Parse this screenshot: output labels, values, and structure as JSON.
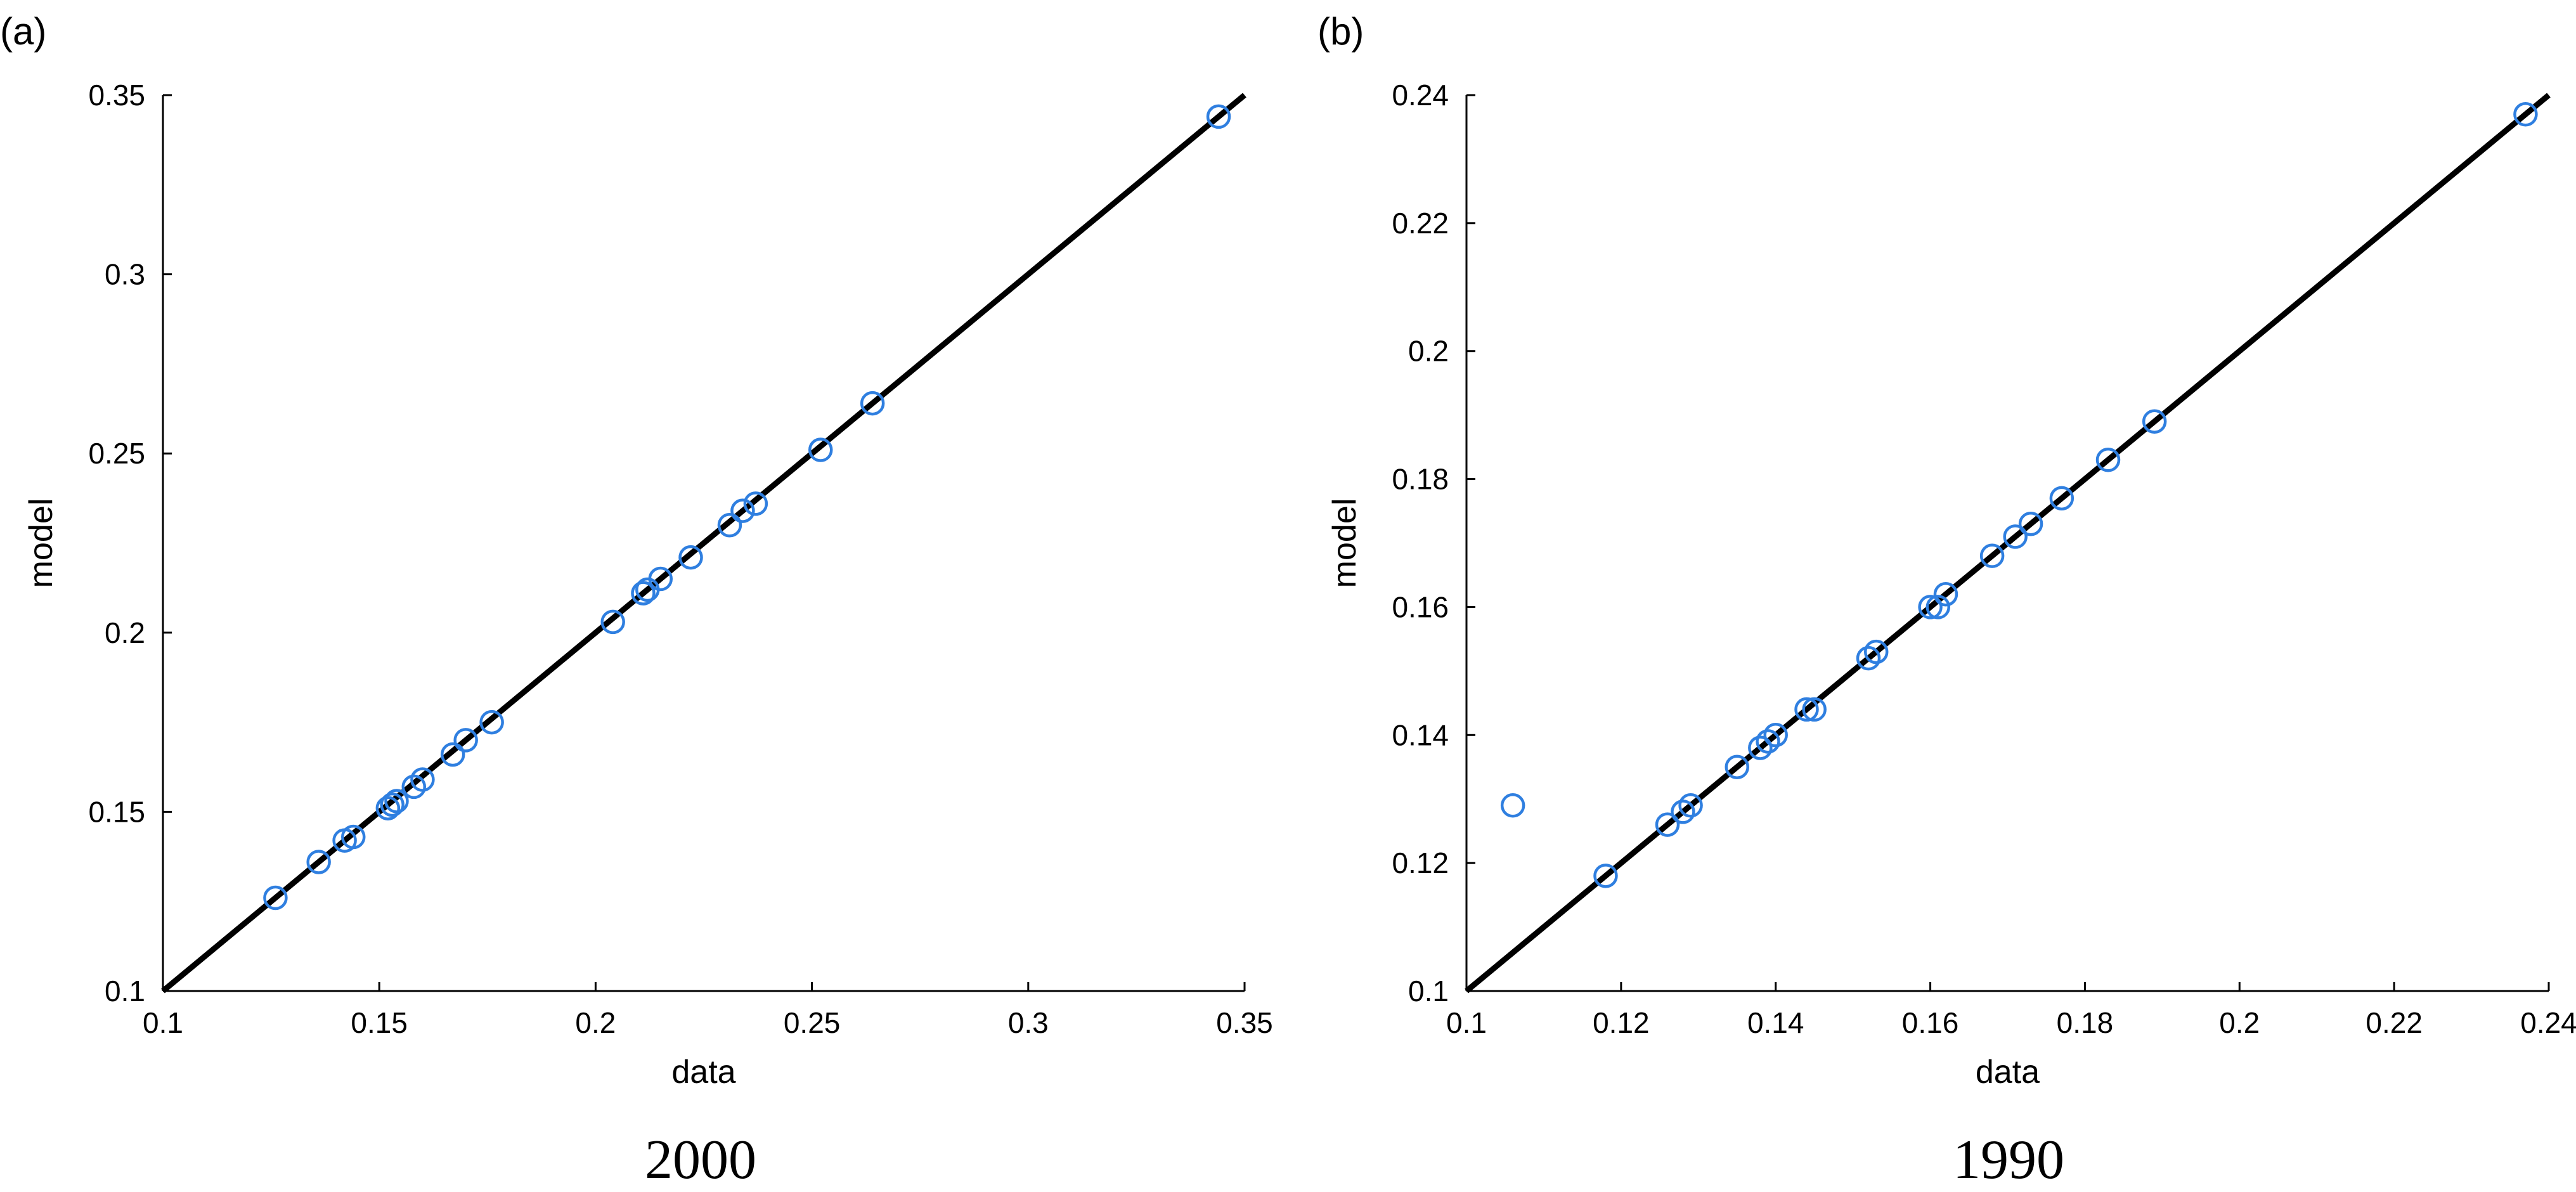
{
  "colors": {
    "marker": "#2f7fe0",
    "line": "#000000",
    "background": "#ffffff"
  },
  "chart_data": [
    {
      "type": "scatter",
      "panel_label": "(a)",
      "year": "2000",
      "title": "",
      "xlabel": "data",
      "ylabel": "model",
      "xlim": [
        0.1,
        0.35
      ],
      "ylim": [
        0.1,
        0.35
      ],
      "xticks": [
        0.1,
        0.15,
        0.2,
        0.25,
        0.3,
        0.35
      ],
      "xtick_labels": [
        "0.1",
        "0.15",
        "0.2",
        "0.25",
        "0.3",
        "0.35"
      ],
      "yticks": [
        0.1,
        0.15,
        0.2,
        0.25,
        0.3,
        0.35
      ],
      "ytick_labels": [
        "0.1",
        "0.15",
        "0.2",
        "0.25",
        "0.3",
        "0.35"
      ],
      "grid": false,
      "reference_line": {
        "x": [
          0.1,
          0.35
        ],
        "y": [
          0.1,
          0.35
        ]
      },
      "points": {
        "x": [
          0.126,
          0.136,
          0.142,
          0.144,
          0.152,
          0.153,
          0.154,
          0.158,
          0.16,
          0.167,
          0.17,
          0.176,
          0.204,
          0.211,
          0.212,
          0.215,
          0.222,
          0.231,
          0.234,
          0.237,
          0.252,
          0.264,
          0.344
        ],
        "y": [
          0.126,
          0.136,
          0.142,
          0.143,
          0.151,
          0.152,
          0.153,
          0.157,
          0.159,
          0.166,
          0.17,
          0.175,
          0.203,
          0.211,
          0.212,
          0.215,
          0.221,
          0.23,
          0.234,
          0.236,
          0.251,
          0.264,
          0.344
        ]
      }
    },
    {
      "type": "scatter",
      "panel_label": "(b)",
      "year": "1990",
      "title": "",
      "xlabel": "data",
      "ylabel": "model",
      "xlim": [
        0.1,
        0.24
      ],
      "ylim": [
        0.1,
        0.24
      ],
      "xticks": [
        0.1,
        0.12,
        0.14,
        0.16,
        0.18,
        0.2,
        0.22,
        0.24
      ],
      "xtick_labels": [
        "0.1",
        "0.12",
        "0.14",
        "0.16",
        "0.18",
        "0.2",
        "0.22",
        "0.24"
      ],
      "yticks": [
        0.1,
        0.12,
        0.14,
        0.16,
        0.18,
        0.2,
        0.22,
        0.24
      ],
      "ytick_labels": [
        "0.1",
        "0.12",
        "0.14",
        "0.16",
        "0.18",
        "0.2",
        "0.22",
        "0.24"
      ],
      "grid": false,
      "reference_line": {
        "x": [
          0.1,
          0.24
        ],
        "y": [
          0.1,
          0.24
        ]
      },
      "points": {
        "x": [
          0.106,
          0.118,
          0.126,
          0.128,
          0.129,
          0.135,
          0.138,
          0.139,
          0.14,
          0.144,
          0.145,
          0.152,
          0.153,
          0.16,
          0.161,
          0.162,
          0.168,
          0.171,
          0.173,
          0.177,
          0.183,
          0.189,
          0.237
        ],
        "y": [
          0.129,
          0.118,
          0.126,
          0.128,
          0.129,
          0.135,
          0.138,
          0.139,
          0.14,
          0.144,
          0.144,
          0.152,
          0.153,
          0.16,
          0.16,
          0.162,
          0.168,
          0.171,
          0.173,
          0.177,
          0.183,
          0.189,
          0.237
        ]
      }
    }
  ]
}
